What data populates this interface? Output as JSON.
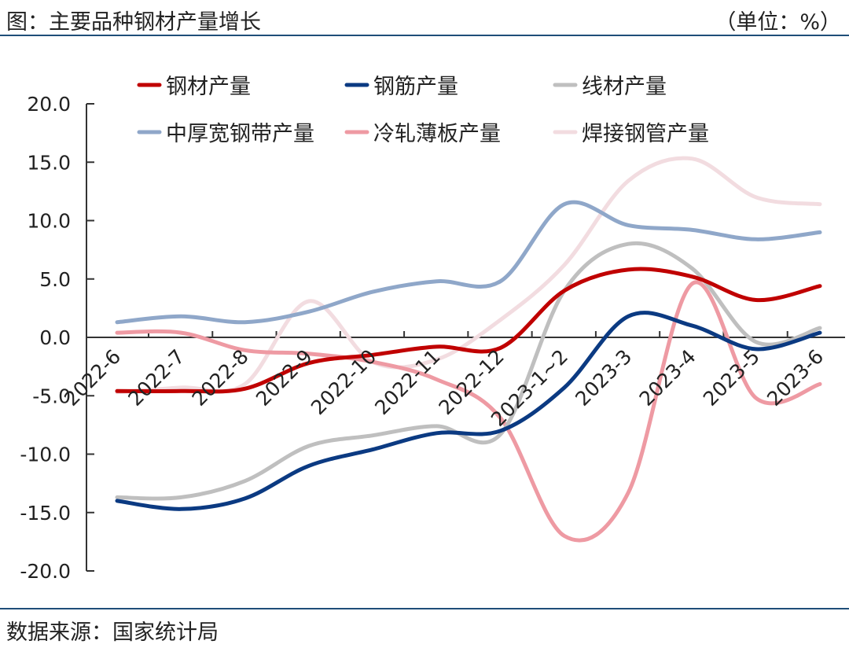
{
  "header": {
    "title": "图：主要品种钢材产量增长",
    "unit": "（单位：%）"
  },
  "footer": {
    "source": "数据来源：国家统计局"
  },
  "chart_data": {
    "type": "line",
    "categories": [
      "2022-6",
      "2022-7",
      "2022-8",
      "2022-9",
      "2022-10",
      "2022-11",
      "2022-12",
      "2023-1~2",
      "2023-3",
      "2023-4",
      "2023-5",
      "2023-6"
    ],
    "ylim": [
      -20,
      20
    ],
    "yticks": [
      "20.0",
      "15.0",
      "10.0",
      "5.0",
      "0.0",
      "-5.0",
      "-10.0",
      "-15.0",
      "-20.0"
    ],
    "grid": false,
    "legend_position": "top",
    "series": [
      {
        "name": "钢材产量",
        "color": "#c00000",
        "values": [
          -4.6,
          -4.6,
          -4.4,
          -2.2,
          -1.5,
          -0.8,
          -0.9,
          4.0,
          5.8,
          5.2,
          3.2,
          4.4
        ]
      },
      {
        "name": "钢筋产量",
        "color": "#0b3a82",
        "values": [
          -14.0,
          -14.7,
          -13.8,
          -11.0,
          -9.6,
          -8.2,
          -8.0,
          -4.3,
          1.8,
          1.0,
          -1.0,
          0.4
        ]
      },
      {
        "name": "线材产量",
        "color": "#bfbfbf",
        "values": [
          -13.7,
          -13.7,
          -12.3,
          -9.3,
          -8.4,
          -7.6,
          -8.3,
          4.0,
          8.0,
          5.9,
          -0.4,
          0.8
        ]
      },
      {
        "name": "中厚宽钢带产量",
        "color": "#8fa7c9",
        "values": [
          1.3,
          1.8,
          1.3,
          2.2,
          3.9,
          4.8,
          4.8,
          11.4,
          9.6,
          9.2,
          8.4,
          9.0
        ]
      },
      {
        "name": "冷轧薄板产量",
        "color": "#ee9aa3",
        "values": [
          0.4,
          0.4,
          -1.1,
          -1.4,
          -2.1,
          -3.6,
          -6.9,
          -17.0,
          -13.3,
          4.6,
          -5.2,
          -4.0
        ]
      },
      {
        "name": "焊接钢管产量",
        "color": "#f2dce0",
        "values": [
          -4.7,
          -4.3,
          -4.0,
          3.1,
          -2.1,
          -1.9,
          1.5,
          6.2,
          13.4,
          15.3,
          12.0,
          11.4
        ]
      }
    ]
  }
}
